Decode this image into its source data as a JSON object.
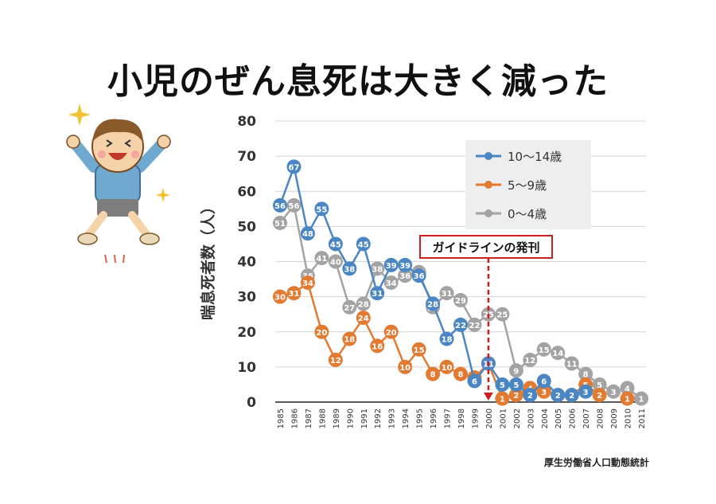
{
  "title": "小児のぜん息死は大きく減った",
  "source": "厚生労働省人口動態統計",
  "colors": {
    "s1": "#4a86c4",
    "s2": "#e27a32",
    "s3": "#a3a3a3",
    "annotation": "#cc1f1f"
  },
  "chart_data": {
    "type": "line",
    "ylabel": "喘息死者数（人）",
    "xlabel": "",
    "ylim": [
      0,
      80
    ],
    "yticks": [
      0,
      10,
      20,
      30,
      40,
      50,
      60,
      70,
      80
    ],
    "grid": true,
    "legend": "top-right",
    "x": [
      "1985",
      "1986",
      "1987",
      "1988",
      "1989",
      "1990",
      "1991",
      "1992",
      "1993",
      "1994",
      "1995",
      "1996",
      "1997",
      "1998",
      "1999",
      "2000",
      "2001",
      "2002",
      "2003",
      "2004",
      "2005",
      "2006",
      "2007",
      "2008",
      "2009",
      "2010",
      "2011"
    ],
    "series": [
      {
        "name": "10〜14歳",
        "values": [
          56,
          67,
          48,
          55,
          45,
          38,
          45,
          31,
          39,
          39,
          36,
          28,
          18,
          22,
          6,
          11,
          5,
          5,
          2,
          6,
          2,
          2,
          3,
          null,
          null,
          null,
          null
        ]
      },
      {
        "name": "5〜9歳",
        "values": [
          30,
          31,
          34,
          20,
          12,
          18,
          24,
          16,
          20,
          10,
          15,
          8,
          10,
          8,
          7,
          11,
          1,
          2,
          4,
          3,
          2,
          2,
          5,
          2,
          null,
          1,
          null
        ]
      },
      {
        "name": "0〜4歳",
        "values": [
          51,
          56,
          36,
          41,
          40,
          27,
          28,
          38,
          34,
          36,
          37,
          27,
          31,
          29,
          22,
          25,
          25,
          9,
          12,
          15,
          14,
          11,
          8,
          5,
          3,
          4,
          1
        ]
      }
    ],
    "annotation": {
      "label": "ガイドラインの発刊",
      "x": "2000"
    }
  }
}
